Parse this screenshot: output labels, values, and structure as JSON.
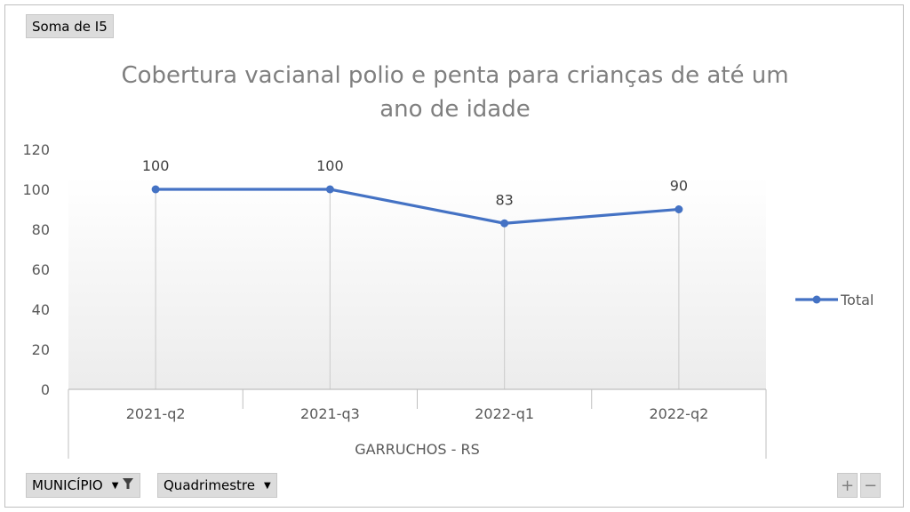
{
  "pivot": {
    "value_field": "Soma de I5",
    "row_field_1": "MUNICÍPIO",
    "row_field_2": "Quadrimestre",
    "zoom_in": "+",
    "zoom_out": "−"
  },
  "colors": {
    "series": "#4472c4",
    "plot_gradient_top": "#ffffff",
    "plot_gradient_bottom": "#ececec"
  },
  "icons": {
    "filter": "filter-icon",
    "dropdown": "chevron-down-icon"
  },
  "chart_data": {
    "type": "line",
    "title_line1": "Cobertura vacianal polio e penta para crianças de até um",
    "title_line2": "ano de idade",
    "categories": [
      "2021-q2",
      "2021-q3",
      "2022-q1",
      "2022-q2"
    ],
    "group_label": "GARRUCHOS - RS",
    "series": [
      {
        "name": "Total",
        "values": [
          100,
          100,
          83,
          90
        ]
      }
    ],
    "ylim": [
      0,
      120
    ],
    "yticks": [
      "0",
      "20",
      "40",
      "60",
      "80",
      "100",
      "120"
    ],
    "legend_position": "right",
    "data_labels": true,
    "vertical_drop_lines": true
  }
}
